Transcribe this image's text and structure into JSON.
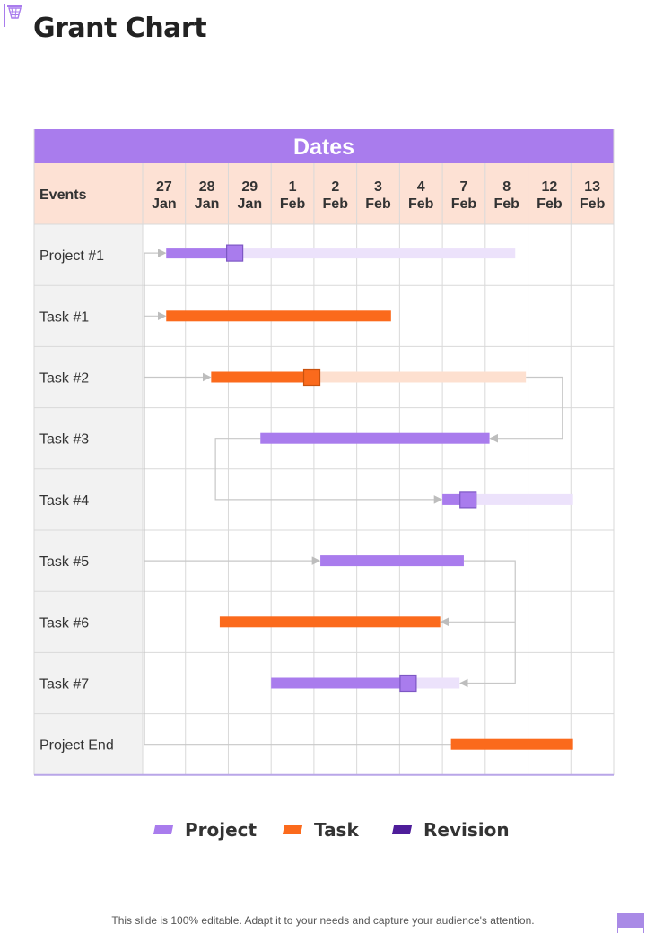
{
  "slide": {
    "title": "Grant Chart",
    "footer": "This slide is 100% editable. Adapt it to your needs and capture your audience's attention."
  },
  "colors": {
    "project": "#a97ced",
    "project_light": "#ece2fb",
    "task": "#fb6a1c",
    "task_light": "#fde0d0",
    "revision": "#4e1d9a",
    "header_purple": "#a97ced",
    "header_peach": "#fde1d4",
    "row_label_bg": "#f2f2f2",
    "grid": "#d9d9d9",
    "connector": "#c7c7c7"
  },
  "legend": [
    {
      "label": "Project",
      "color": "#a97ced"
    },
    {
      "label": "Task",
      "color": "#fb6a1c"
    },
    {
      "label": "Revision",
      "color": "#4e1d9a"
    }
  ],
  "chart_data": {
    "type": "table",
    "title": "Dates",
    "events_header": "Events",
    "dates": [
      {
        "day": "27",
        "month": "Jan"
      },
      {
        "day": "28",
        "month": "Jan"
      },
      {
        "day": "29",
        "month": "Jan"
      },
      {
        "day": "1",
        "month": "Feb"
      },
      {
        "day": "2",
        "month": "Feb"
      },
      {
        "day": "3",
        "month": "Feb"
      },
      {
        "day": "4",
        "month": "Feb"
      },
      {
        "day": "7",
        "month": "Feb"
      },
      {
        "day": "8",
        "month": "Feb"
      },
      {
        "day": "12",
        "month": "Feb"
      },
      {
        "day": "13",
        "month": "Feb"
      }
    ],
    "rows": [
      {
        "label": "Project #1",
        "kind": "project",
        "start": 0.55,
        "end": 2.15,
        "planned_end": 8.7,
        "marker": 2.15
      },
      {
        "label": "Task #1",
        "kind": "task",
        "start": 0.55,
        "end": 5.8
      },
      {
        "label": "Task #2",
        "kind": "task",
        "start": 1.6,
        "end": 3.95,
        "planned_end": 8.95,
        "marker": 3.95
      },
      {
        "label": "Task #3",
        "kind": "project",
        "start": 2.75,
        "end": 8.1
      },
      {
        "label": "Task #4",
        "kind": "project",
        "start": 7.0,
        "end": 7.6,
        "planned_end": 10.05,
        "marker": 7.6
      },
      {
        "label": "Task #5",
        "kind": "project",
        "start": 4.15,
        "end": 7.5
      },
      {
        "label": "Task #6",
        "kind": "task",
        "start": 1.8,
        "end": 6.95
      },
      {
        "label": "Task #7",
        "kind": "project",
        "start": 3.0,
        "end": 6.2,
        "planned_end": 7.4,
        "marker": 6.2
      },
      {
        "label": "Project End",
        "kind": "task",
        "start": 7.2,
        "end": 10.05
      }
    ]
  }
}
